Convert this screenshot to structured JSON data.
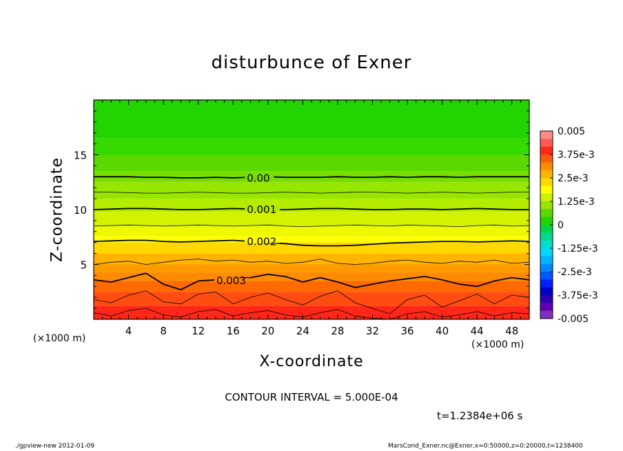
{
  "chart_data": {
    "type": "heatmap",
    "title": "disturbunce of Exner",
    "xlabel": "X-coordinate",
    "ylabel": "Z-coordinate",
    "x_unit_left": "(×1000 m)",
    "x_unit_right": "(×1000 m)",
    "xlim": [
      0,
      50
    ],
    "ylim": [
      0,
      20
    ],
    "x_ticks": [
      4,
      8,
      12,
      16,
      20,
      24,
      28,
      32,
      36,
      40,
      44,
      48
    ],
    "y_ticks": [
      5,
      10,
      15
    ],
    "contour_interval": "CONTOUR INTERVAL = 5.000E-04",
    "time": "t=1.2384e+06 s",
    "colorbar": {
      "range": [
        -0.005,
        0.005
      ],
      "labels": [
        "0.005",
        "3.75e-3",
        "2.5e-3",
        "1.25e-3",
        "0",
        "-1.25e-3",
        "-2.5e-3",
        "-3.75e-3",
        "-0.005"
      ],
      "colors": [
        "#ff8a8a",
        "#ff5a50",
        "#ff2818",
        "#ff5a10",
        "#ff8c00",
        "#ffb400",
        "#ffd800",
        "#ffff00",
        "#ccf000",
        "#96e600",
        "#5ad800",
        "#22d400",
        "#00d44a",
        "#00d890",
        "#00e0c8",
        "#00d8ff",
        "#00b4ff",
        "#0088ff",
        "#0058ff",
        "#0020ff",
        "#0000c8",
        "#3000b0",
        "#6000b0",
        "#8030c0"
      ]
    },
    "fill_bands": [
      {
        "from": 16.5,
        "color": "#22d400"
      },
      {
        "from": 15.0,
        "color": "#34da00"
      },
      {
        "from": 13.5,
        "color": "#5ad800"
      },
      {
        "from": 12.5,
        "color": "#78de00"
      },
      {
        "from": 11.0,
        "color": "#96e600"
      },
      {
        "from": 9.8,
        "color": "#b4ec00"
      },
      {
        "from": 8.5,
        "color": "#d2f200"
      },
      {
        "from": 7.6,
        "color": "#eef800"
      },
      {
        "from": 7.0,
        "color": "#ffff00"
      },
      {
        "from": 6.0,
        "color": "#ffd800"
      },
      {
        "from": 5.0,
        "color": "#ffb400"
      },
      {
        "from": 4.3,
        "color": "#ff9a00"
      },
      {
        "from": 3.5,
        "color": "#ff8c00"
      },
      {
        "from": 2.5,
        "color": "#ff6a00"
      },
      {
        "from": 1.2,
        "color": "#ff4c10"
      },
      {
        "from": 0.0,
        "color": "#ff2818"
      }
    ],
    "contours": [
      {
        "label": "0.00",
        "label_x": 17.5,
        "z": [
          13.0,
          13.0,
          13.0,
          12.95,
          12.95,
          12.9,
          12.9,
          12.95,
          12.9,
          12.95,
          13.0,
          12.95,
          12.95,
          12.95,
          13.0,
          12.95,
          12.95,
          13.0,
          12.95,
          13.0,
          13.0,
          12.95,
          13.0,
          13.0,
          13.0,
          13.0
        ],
        "heavy": true
      },
      {
        "label": "",
        "z": [
          11.6,
          11.6,
          11.55,
          11.5,
          11.5,
          11.55,
          11.6,
          11.55,
          11.5,
          11.5,
          11.55,
          11.6,
          11.55,
          11.5,
          11.55,
          11.6,
          11.6,
          11.55,
          11.5,
          11.55,
          11.6,
          11.55,
          11.5,
          11.55,
          11.6,
          11.6
        ],
        "heavy": false
      },
      {
        "label": "0.001",
        "label_x": 17.5,
        "z": [
          10.0,
          10.05,
          10.1,
          10.1,
          10.05,
          10.0,
          10.0,
          10.05,
          10.1,
          10.05,
          10.0,
          10.0,
          10.05,
          10.1,
          10.1,
          10.05,
          10.0,
          10.0,
          10.05,
          10.05,
          10.0,
          10.05,
          10.1,
          10.05,
          10.0,
          10.0
        ],
        "heavy": true
      },
      {
        "label": "",
        "z": [
          8.5,
          8.55,
          8.6,
          8.55,
          8.5,
          8.55,
          8.6,
          8.55,
          8.5,
          8.55,
          8.6,
          8.5,
          8.45,
          8.5,
          8.55,
          8.6,
          8.55,
          8.5,
          8.6,
          8.55,
          8.5,
          8.45,
          8.55,
          8.6,
          8.5,
          8.55
        ],
        "heavy": false
      },
      {
        "label": "0.002",
        "label_x": 17.5,
        "z": [
          7.1,
          7.15,
          7.2,
          7.2,
          7.1,
          7.05,
          7.1,
          7.15,
          7.2,
          7.1,
          7.0,
          6.9,
          6.75,
          6.7,
          6.7,
          6.75,
          6.85,
          6.95,
          7.0,
          7.05,
          7.1,
          7.1,
          7.05,
          7.1,
          7.15,
          7.1
        ],
        "heavy": true
      },
      {
        "label": "",
        "z": [
          5.0,
          5.2,
          5.3,
          5.0,
          5.2,
          5.4,
          5.5,
          5.3,
          5.4,
          5.2,
          5.3,
          5.1,
          5.2,
          5.5,
          5.1,
          5.0,
          5.1,
          5.3,
          5.4,
          5.2,
          5.1,
          5.3,
          5.2,
          5.4,
          5.1,
          5.2
        ],
        "heavy": false
      },
      {
        "label": "0.003",
        "label_x": 14.0,
        "z": [
          3.6,
          3.4,
          3.8,
          4.2,
          3.2,
          2.7,
          3.5,
          3.6,
          3.7,
          3.8,
          4.1,
          3.9,
          3.4,
          3.8,
          3.4,
          2.9,
          3.2,
          3.5,
          3.7,
          3.9,
          3.6,
          3.2,
          3.0,
          3.5,
          3.8,
          3.6
        ],
        "heavy": true
      },
      {
        "label": "",
        "z": [
          1.8,
          1.5,
          2.2,
          2.6,
          1.6,
          1.4,
          2.3,
          2.5,
          1.4,
          2.0,
          2.4,
          1.8,
          1.3,
          2.1,
          2.6,
          1.5,
          1.0,
          0.5,
          1.8,
          2.2,
          1.1,
          1.7,
          2.3,
          1.4,
          2.2,
          2.0
        ],
        "heavy": false
      },
      {
        "label": "",
        "z": [
          0.6,
          0.3,
          0.8,
          1.0,
          0.4,
          0.2,
          0.7,
          0.9,
          0.3,
          0.6,
          0.8,
          0.4,
          0.2,
          0.6,
          0.9,
          0.3,
          0.1,
          0.0,
          0.5,
          0.7,
          0.2,
          0.4,
          0.7,
          0.3,
          0.6,
          0.5
        ],
        "heavy": false
      }
    ]
  },
  "footer": {
    "left": "./gpview-new   2012-01-09",
    "right": "MarsCond_Exner.nc@Exner,x=0:50000,z=0:20000,t=1238400"
  }
}
